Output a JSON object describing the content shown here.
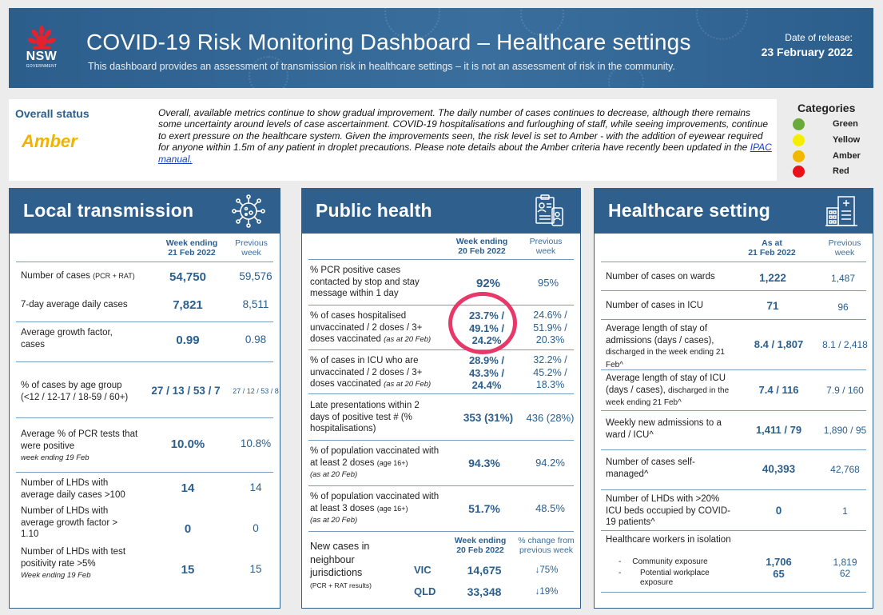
{
  "header": {
    "logo_text": "NSW",
    "logo_sub": "GOVERNMENT",
    "title": "COVID-19 Risk Monitoring Dashboard – Healthcare settings",
    "subtitle": "This dashboard provides an assessment of transmission risk in healthcare settings – it is not an assessment of risk in the community.",
    "date_label": "Date of release:",
    "date_value": "23 February 2022"
  },
  "status": {
    "label": "Overall status",
    "value": "Amber",
    "text": "Overall, available metrics continue to show gradual improvement. The daily number of cases continues to decrease, although there remains some uncertainty around levels of case ascertainment. COVID-19 hospitalisations and furloughing of staff, while seeing improvements, continue to exert pressure on the healthcare system. Given the improvements seen, the risk level is set to Amber - with the addition of eyewear required for anyone within 1.5m of any patient in droplet precautions. Please note details about the Amber criteria have recently been updated in the ",
    "link": "IPAC manual.",
    "value_color": "#f0b400"
  },
  "categories": {
    "title": "Categories",
    "items": [
      {
        "name": "Green",
        "color": "#6aaa3a"
      },
      {
        "name": "Yellow",
        "color": "#f5ee00"
      },
      {
        "name": "Amber",
        "color": "#f2b800"
      },
      {
        "name": "Red",
        "color": "#e8101a"
      }
    ]
  },
  "local": {
    "title": "Local transmission",
    "icon": "virus-icon",
    "col_cur": "Week ending\n21 Feb 2022",
    "col_prev": "Previous\nweek",
    "rows": [
      {
        "label": "Number of cases",
        "small": "(PCR + RAT)",
        "cur": "54,750",
        "prev": "59,576"
      },
      {
        "label": "7-day average daily cases",
        "cur": "7,821",
        "prev": "8,511"
      },
      {
        "label": "Average growth factor, cases",
        "cur": "0.99",
        "prev": "0.98"
      },
      {
        "label": "% of cases by age group (<12 / 12-17 / 18-59 / 60+)",
        "cur": "27 / 13 / 53 / 7",
        "prev": "27 / 12 / 53 / 8"
      },
      {
        "label": "Average % of PCR tests that were positive",
        "note": "week ending 19 Feb",
        "cur": "10.0%",
        "prev": "10.8%"
      },
      {
        "label": "Number of LHDs with average daily cases >100",
        "cur": "14",
        "prev": "14"
      },
      {
        "label": "Number of LHDs with average growth factor > 1.10",
        "cur": "0",
        "prev": "0"
      },
      {
        "label": "Number of LHDs with test positivity rate >5%",
        "note": "Week ending 19 Feb",
        "cur": "15",
        "prev": "15"
      }
    ]
  },
  "public": {
    "title": "Public health",
    "icon": "contact-tracing-icon",
    "col_cur": "Week ending\n20 Feb 2022",
    "col_prev": "Previous\nweek",
    "rows": [
      {
        "label": "% PCR positive cases contacted by stop and stay message within 1 day",
        "cur": "92%",
        "prev": "95%"
      },
      {
        "label": "% of cases hospitalised unvaccinated / 2 doses / 3+ doses vaccinated",
        "note": "(as at 20 Feb)",
        "cur": "23.7% / 49.1% / 24.2%",
        "prev": "24.6% / 51.9% / 20.3%"
      },
      {
        "label": "% of cases in ICU who are unvaccinated / 2 doses / 3+ doses vaccinated",
        "note": "(as at 20 Feb)",
        "cur": "28.9% / 43.3% / 24.4%",
        "prev": "32.2% / 45.2% / 18.3%"
      },
      {
        "label": "Late presentations within 2 days of positive test # (% hospitalisations)",
        "cur": "353 (31%)",
        "prev": "436 (28%)"
      },
      {
        "label": "% of population vaccinated with at least 2 doses",
        "small": "(age 16+)",
        "note": "(as at 20 Feb)",
        "cur": "94.3%",
        "prev": "94.2%"
      },
      {
        "label": "% of population vaccinated with at least 3 doses",
        "small": "(age 16+)",
        "note": "(as at 20 Feb)",
        "cur": "51.7%",
        "prev": "48.5%"
      }
    ],
    "neighbour": {
      "label": "New cases in neighbour jurisdictions",
      "small": "(PCR + RAT results)",
      "col_cur": "Week ending\n20 Feb 2022",
      "col_prev": "% change from\nprevious week",
      "rows": [
        {
          "state": "VIC",
          "cur": "14,675",
          "change": "↓75%"
        },
        {
          "state": "QLD",
          "cur": "33,348",
          "change": "↓19%"
        }
      ]
    }
  },
  "health": {
    "title": "Healthcare setting",
    "icon": "hospital-icon",
    "col_cur": "As at\n21 Feb 2022",
    "col_prev": "Previous\nweek",
    "rows": [
      {
        "label": "Number of cases on wards",
        "cur": "1,222",
        "prev": "1,487"
      },
      {
        "label": "Number of cases in ICU",
        "cur": "71",
        "prev": "96"
      },
      {
        "label": "Average length of stay of admissions (days / cases),",
        "small": "discharged in the week ending 21 Feb^",
        "cur": "8.4 / 1,807",
        "prev": "8.1 / 2,418"
      },
      {
        "label": "Average length of stay of ICU (days / cases),",
        "small": "discharged in the week ending 21 Feb^",
        "cur": "7.4 / 116",
        "prev": "7.9 / 160"
      },
      {
        "label": "Weekly new admissions to a ward / ICU^",
        "cur": "1,411 / 79",
        "prev": "1,890 / 95"
      },
      {
        "label": "Number of cases self-managed^",
        "cur": "40,393",
        "prev": "42,768"
      },
      {
        "label": "Number of LHDs with >20% ICU beds occupied by COVID-19 patients^",
        "cur": "0",
        "prev": "1"
      },
      {
        "label": "Healthcare workers in isolation",
        "sub1": "Community exposure",
        "sub2": "Potential workplace exposure",
        "cur1": "1,706",
        "cur2": "65",
        "prev1": "1,819",
        "prev2": "62"
      }
    ]
  }
}
